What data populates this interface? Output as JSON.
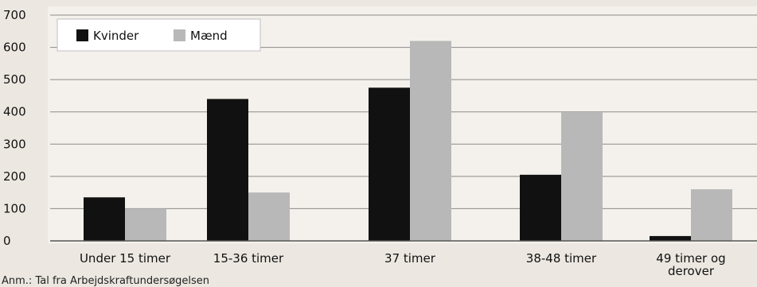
{
  "chart_data": {
    "type": "bar",
    "categories": [
      "Under 15 timer",
      "15-36 timer",
      "37 timer",
      "38-48 timer",
      "49 timer og derover"
    ],
    "series": [
      {
        "name": "Kvinder",
        "color": "#111111",
        "values": [
          135,
          440,
          475,
          205,
          15
        ]
      },
      {
        "name": "Mænd",
        "color": "#b8b8b8",
        "values": [
          100,
          150,
          620,
          398,
          160
        ]
      }
    ],
    "y_ticks": [
      "700",
      "600",
      "500",
      "400",
      "300",
      "200",
      "100",
      "0"
    ],
    "ylim": [
      0,
      700
    ],
    "grid": true,
    "legend_position": "top-left",
    "note": "Anm.: Tal fra Arbejdskraftundersøgelsen"
  }
}
